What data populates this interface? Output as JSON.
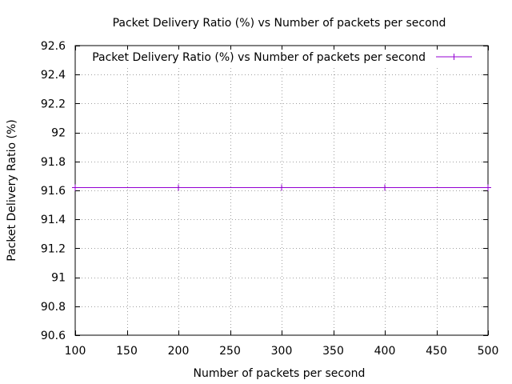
{
  "chart_data": {
    "type": "line",
    "title": "Packet Delivery Ratio (%) vs Number of packets per second",
    "xlabel": "Number of packets per second",
    "ylabel": "Packet Delivery Ratio (%)",
    "xlim": [
      100,
      500
    ],
    "ylim": [
      90.6,
      92.6
    ],
    "x_ticks": [
      100,
      150,
      200,
      250,
      300,
      350,
      400,
      450,
      500
    ],
    "x_tick_labels": [
      "100",
      "150",
      "200",
      "250",
      "300",
      "350",
      "400",
      "450",
      "500"
    ],
    "y_ticks": [
      90.6,
      90.8,
      91,
      91.2,
      91.4,
      91.6,
      91.8,
      92,
      92.2,
      92.4,
      92.6
    ],
    "y_tick_labels": [
      "90.6",
      "90.8",
      "91",
      "91.2",
      "91.4",
      "91.6",
      "91.8",
      "92",
      "92.2",
      "92.4",
      "92.6"
    ],
    "grid": true,
    "legend_position": "top-right",
    "series": [
      {
        "name": "Packet Delivery Ratio (%) vs Number of packets per second",
        "color": "#9400d3",
        "marker": "plus",
        "x": [
          100,
          200,
          300,
          400,
          500
        ],
        "y": [
          91.62,
          91.62,
          91.62,
          91.62,
          91.62
        ]
      }
    ]
  }
}
